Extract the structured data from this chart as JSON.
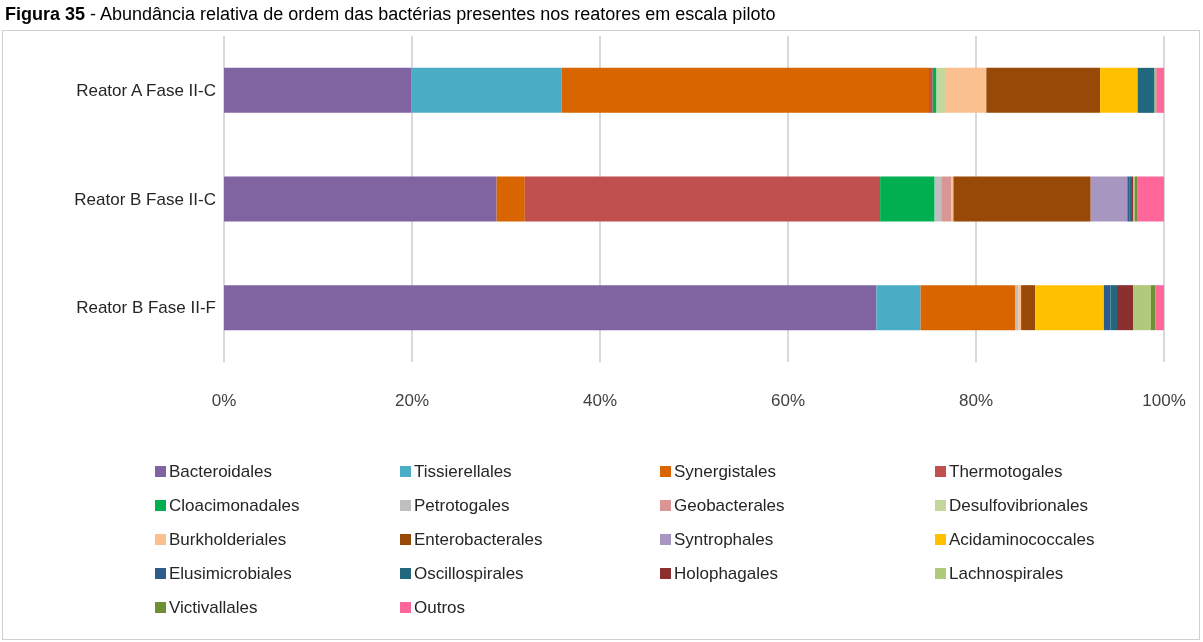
{
  "chart_data": {
    "type": "bar",
    "orientation": "horizontal",
    "stacked": true,
    "title": "Figura 35 - Abundância relativa de ordem das bactérias presentes nos reatores em escala piloto",
    "categories": [
      "Reator A Fase II-C",
      "Reator B Fase II-C",
      "Reator B Fase II-F"
    ],
    "xlim": [
      0,
      100
    ],
    "xticks": [
      {
        "value": 0,
        "label": "0%"
      },
      {
        "value": 20,
        "label": "20%"
      },
      {
        "value": 40,
        "label": "40%"
      },
      {
        "value": 60,
        "label": "60%"
      },
      {
        "value": 80,
        "label": "80%"
      },
      {
        "value": 100,
        "label": "100%"
      }
    ],
    "grid": "x",
    "legend": "bottom",
    "series": [
      {
        "name": "Bacteroidales",
        "color": "#8064a2",
        "values": [
          19.9,
          29.0,
          69.4
        ]
      },
      {
        "name": "Tissierellales",
        "color": "#4bacc6",
        "values": [
          16.0,
          0,
          4.7
        ]
      },
      {
        "name": "Synergistales",
        "color": "#d96500",
        "values": [
          39.1,
          3.0,
          10.1
        ]
      },
      {
        "name": "Thermotogales",
        "color": "#c0504d",
        "values": [
          0.4,
          37.8,
          0
        ]
      },
      {
        "name": "Cloacimonadales",
        "color": "#00b050",
        "values": [
          0.4,
          5.8,
          0
        ]
      },
      {
        "name": "Petrotogales",
        "color": "#bfbfbf",
        "values": [
          null,
          0.7,
          0.2
        ]
      },
      {
        "name": "Geobacterales",
        "color": "#d99694",
        "values": [
          null,
          1.1,
          0.1
        ]
      },
      {
        "name": "Desulfovibrionales",
        "color": "#c3d69b",
        "values": [
          1.0,
          0,
          0
        ]
      },
      {
        "name": "Burkholderiales",
        "color": "#fac090",
        "values": [
          4.3,
          0.2,
          0.3
        ]
      },
      {
        "name": "Enterobacterales",
        "color": "#984807",
        "values": [
          12.1,
          14.6,
          1.5
        ]
      },
      {
        "name": "Syntrophales",
        "color": "#a796c0",
        "values": [
          0,
          3.9,
          0
        ]
      },
      {
        "name": "Acidaminococcales",
        "color": "#ffc000",
        "values": [
          4.0,
          0,
          7.3
        ]
      },
      {
        "name": "Elusimicrobiales",
        "color": "#2e5b8c",
        "values": [
          0,
          0.2,
          0.7
        ]
      },
      {
        "name": "Oscillospirales",
        "color": "#21677d",
        "values": [
          1.8,
          0.2,
          0.7
        ]
      },
      {
        "name": "Holophagales",
        "color": "#8b2f2f",
        "values": [
          0,
          0.2,
          1.7
        ]
      },
      {
        "name": "Lachnospirales",
        "color": "#b0c97a",
        "values": [
          0.1,
          0.2,
          1.9
        ]
      },
      {
        "name": "Victivallales",
        "color": "#6f8f35",
        "values": [
          0.1,
          0.3,
          0.5
        ]
      },
      {
        "name": "Outros",
        "color": "#ff6699",
        "values": [
          0.8,
          2.8,
          0.9
        ]
      }
    ]
  }
}
